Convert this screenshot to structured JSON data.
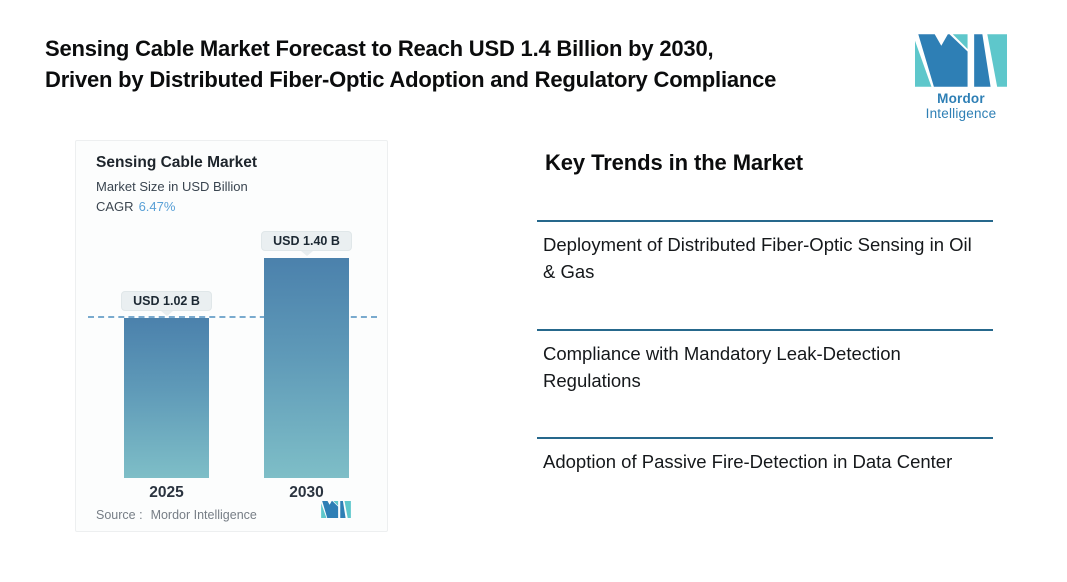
{
  "header": {
    "title_line1": "Sensing Cable Market Forecast to Reach USD 1.4 Billion by 2030,",
    "title_line2": "Driven by Distributed Fiber-Optic Adoption and Regulatory Compliance"
  },
  "brand": {
    "logo_text_bold": "Mordor",
    "logo_text_regular": "Intelligence",
    "logo_blue": "#2e7fb5",
    "logo_teal": "#5ec7cb"
  },
  "chart_panel": {
    "title": "Sensing Cable Market",
    "subtitle": "Market Size in USD Billion",
    "cagr_label": "CAGR",
    "cagr_value": "6.47%",
    "source_label": "Source :",
    "source_value": "Mordor Intelligence"
  },
  "chart_data": {
    "type": "bar",
    "title": "Sensing Cable Market",
    "subtitle": "Market Size in USD Billion",
    "cagr": "6.47%",
    "unit": "USD Billion",
    "categories": [
      "2025",
      "2030"
    ],
    "values": [
      1.02,
      1.4
    ],
    "value_labels": [
      "USD 1.02 B",
      "USD 1.40 B"
    ],
    "ylim": [
      0,
      1.4
    ],
    "grid": false,
    "legend": false,
    "reference_line": {
      "value": 1.02,
      "style": "dashed",
      "color": "#79aace"
    },
    "bar_gradient_top": "#4b81ac",
    "bar_gradient_bottom": "#7ebec7",
    "source": "Mordor Intelligence"
  },
  "trends": {
    "heading": "Key Trends in the Market",
    "divider_color": "#26688c",
    "items": [
      "Deployment of Distributed Fiber-Optic Sensing in Oil & Gas",
      "Compliance with Mandatory Leak-Detection Regulations",
      "Adoption of Passive Fire-Detection in Data Center"
    ]
  }
}
